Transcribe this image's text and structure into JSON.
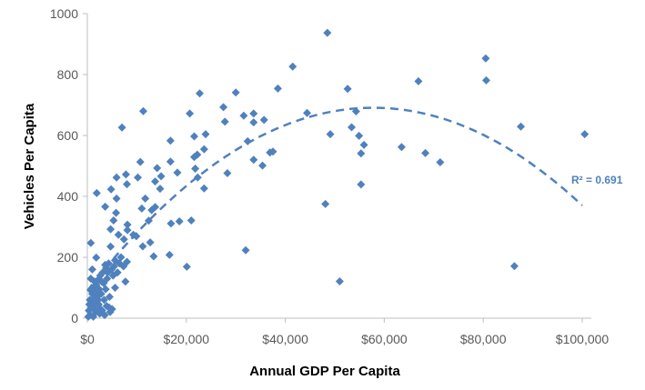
{
  "chart_data": {
    "type": "scatter",
    "title": "",
    "xlabel": "Annual GDP Per Capita",
    "ylabel": "Vehicles Per Capita",
    "xlim": [
      0,
      100000
    ],
    "ylim": [
      0,
      1000
    ],
    "x_ticks": [
      0,
      20000,
      40000,
      60000,
      80000,
      100000
    ],
    "x_tick_labels": [
      "$0",
      "$20,000",
      "$40,000",
      "$60,000",
      "$80,000",
      "$100,000"
    ],
    "y_ticks": [
      0,
      200,
      400,
      600,
      800,
      1000
    ],
    "y_tick_labels": [
      "0",
      "200",
      "400",
      "600",
      "800",
      "1000"
    ],
    "grid": false,
    "legend": "none",
    "marker": "diamond",
    "color": "#4f81bd",
    "trendline": {
      "type": "polynomial-2",
      "style": "dashed",
      "coefficients": [
        90,
        0.0208,
        -1.8e-07
      ],
      "label": "R² = 0.691"
    },
    "points": [
      [
        48500,
        937
      ],
      [
        41500,
        826
      ],
      [
        38500,
        754
      ],
      [
        52600,
        753
      ],
      [
        66900,
        778
      ],
      [
        80500,
        853
      ],
      [
        80600,
        781
      ],
      [
        44400,
        674
      ],
      [
        54300,
        679
      ],
      [
        53400,
        627
      ],
      [
        49100,
        604
      ],
      [
        54900,
        599
      ],
      [
        55900,
        569
      ],
      [
        55300,
        541
      ],
      [
        63500,
        562
      ],
      [
        68300,
        542
      ],
      [
        71300,
        512
      ],
      [
        87600,
        629
      ],
      [
        100500,
        604
      ],
      [
        55300,
        439
      ],
      [
        48100,
        375
      ],
      [
        86300,
        171
      ],
      [
        51000,
        121
      ],
      [
        37500,
        547
      ],
      [
        22700,
        738
      ],
      [
        30000,
        741
      ],
      [
        11300,
        680
      ],
      [
        20700,
        672
      ],
      [
        27500,
        693
      ],
      [
        7000,
        626
      ],
      [
        31600,
        665
      ],
      [
        33600,
        672
      ],
      [
        33600,
        643
      ],
      [
        35700,
        651
      ],
      [
        27800,
        645
      ],
      [
        16800,
        583
      ],
      [
        21600,
        597
      ],
      [
        23900,
        604
      ],
      [
        32400,
        581
      ],
      [
        23600,
        555
      ],
      [
        22200,
        537
      ],
      [
        21600,
        529
      ],
      [
        36900,
        544
      ],
      [
        33600,
        520
      ],
      [
        35400,
        501
      ],
      [
        10700,
        513
      ],
      [
        16800,
        514
      ],
      [
        14100,
        493
      ],
      [
        21800,
        491
      ],
      [
        18200,
        478
      ],
      [
        28300,
        476
      ],
      [
        14900,
        466
      ],
      [
        22300,
        462
      ],
      [
        5900,
        462
      ],
      [
        7800,
        472
      ],
      [
        10200,
        462
      ],
      [
        13700,
        449
      ],
      [
        8000,
        440
      ],
      [
        23600,
        426
      ],
      [
        14700,
        425
      ],
      [
        4800,
        423
      ],
      [
        1900,
        411
      ],
      [
        5900,
        393
      ],
      [
        11700,
        393
      ],
      [
        3600,
        366
      ],
      [
        11000,
        360
      ],
      [
        13700,
        365
      ],
      [
        5800,
        346
      ],
      [
        13000,
        355
      ],
      [
        5300,
        321
      ],
      [
        12400,
        320
      ],
      [
        16900,
        311
      ],
      [
        18600,
        318
      ],
      [
        21000,
        321
      ],
      [
        4700,
        292
      ],
      [
        8100,
        307
      ],
      [
        8100,
        289
      ],
      [
        6300,
        274
      ],
      [
        9300,
        274
      ],
      [
        9900,
        269
      ],
      [
        7400,
        259
      ],
      [
        700,
        247
      ],
      [
        12700,
        249
      ],
      [
        11200,
        236
      ],
      [
        4700,
        235
      ],
      [
        32000,
        223
      ],
      [
        1800,
        199
      ],
      [
        13400,
        203
      ],
      [
        16600,
        208
      ],
      [
        20100,
        169
      ],
      [
        8000,
        185
      ],
      [
        6800,
        200
      ],
      [
        7300,
        170
      ],
      [
        5600,
        190
      ],
      [
        4300,
        180
      ],
      [
        3800,
        165
      ],
      [
        4900,
        160
      ],
      [
        6100,
        150
      ],
      [
        3100,
        150
      ],
      [
        2600,
        140
      ],
      [
        5200,
        140
      ],
      [
        4000,
        130
      ],
      [
        2100,
        125
      ],
      [
        1500,
        120
      ],
      [
        3300,
        115
      ],
      [
        700,
        130
      ],
      [
        1200,
        100
      ],
      [
        2400,
        95
      ],
      [
        3700,
        95
      ],
      [
        5600,
        100
      ],
      [
        4500,
        70
      ],
      [
        3400,
        60
      ],
      [
        2800,
        80
      ],
      [
        1900,
        70
      ],
      [
        1000,
        80
      ],
      [
        500,
        60
      ],
      [
        1400,
        50
      ],
      [
        2300,
        45
      ],
      [
        3900,
        40
      ],
      [
        4400,
        35
      ],
      [
        5000,
        30
      ],
      [
        3000,
        25
      ],
      [
        900,
        35
      ],
      [
        300,
        25
      ],
      [
        1700,
        20
      ],
      [
        2500,
        15
      ],
      [
        600,
        10
      ],
      [
        1200,
        5
      ],
      [
        200,
        5
      ],
      [
        3500,
        10
      ],
      [
        4600,
        20
      ],
      [
        6500,
        180
      ],
      [
        7700,
        120
      ],
      [
        1000,
        160
      ],
      [
        1600,
        30
      ],
      [
        2000,
        90
      ],
      [
        800,
        90
      ],
      [
        4100,
        150
      ],
      [
        3600,
        175
      ],
      [
        5400,
        170
      ],
      [
        2900,
        120
      ],
      [
        2200,
        60
      ],
      [
        1300,
        65
      ],
      [
        400,
        45
      ],
      [
        2700,
        30
      ],
      [
        1800,
        110
      ]
    ]
  }
}
